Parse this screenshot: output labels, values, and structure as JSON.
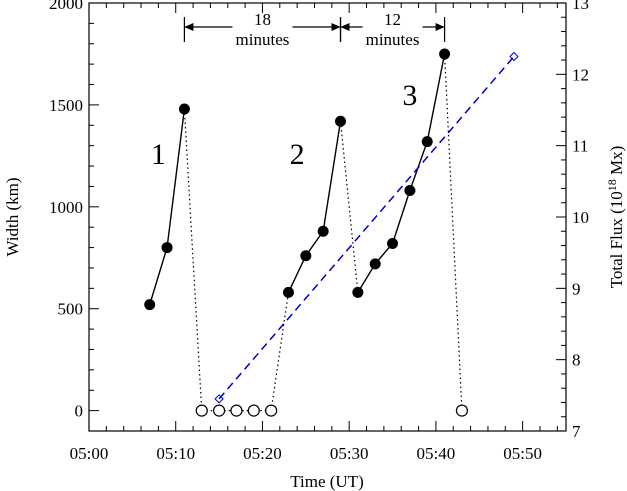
{
  "chart_data": {
    "type": "line",
    "x_unit": "time (UT)",
    "xlabel": "Time (UT)",
    "ylabel_left": "Width (km)",
    "ylabel_right_prefix": "Total Flux (10",
    "ylabel_right_exp": "18",
    "ylabel_right_suffix": " Mx)",
    "xlim": [
      "05:00",
      "05:55"
    ],
    "ylim_left": [
      -100,
      2000
    ],
    "ylim_right": [
      7,
      13
    ],
    "x_ticks": [
      "05:00",
      "05:10",
      "05:20",
      "05:30",
      "05:40",
      "05:50"
    ],
    "y_ticks_left": [
      "0",
      "500",
      "1000",
      "1500",
      "2000"
    ],
    "y_ticks_right": [
      "7",
      "8",
      "9",
      "10",
      "11",
      "12",
      "13"
    ],
    "series": [
      {
        "axis": "left",
        "style": "solid-filled",
        "color": "#000000",
        "x": [
          "05:07",
          "05:09",
          "05:11"
        ],
        "y": [
          520,
          800,
          1480
        ]
      },
      {
        "axis": "left",
        "style": "solid-filled",
        "color": "#000000",
        "x": [
          "05:23",
          "05:25",
          "05:27",
          "05:29"
        ],
        "y": [
          580,
          760,
          880,
          1420
        ]
      },
      {
        "axis": "left",
        "style": "solid-filled",
        "color": "#000000",
        "x": [
          "05:31",
          "05:33",
          "05:35",
          "05:37",
          "05:39",
          "05:41"
        ],
        "y": [
          580,
          720,
          820,
          1080,
          1320,
          1750
        ]
      },
      {
        "axis": "left",
        "style": "dotted-open",
        "color": "#000000",
        "x": [
          "05:13",
          "05:15",
          "05:17",
          "05:19",
          "05:21"
        ],
        "y": [
          0,
          0,
          0,
          0,
          0
        ]
      },
      {
        "axis": "left",
        "style": "dotted-open",
        "color": "#000000",
        "x": [
          "05:43"
        ],
        "y": [
          0
        ]
      },
      {
        "axis": "right",
        "style": "dashed-diamond",
        "color": "#0000cc",
        "x": [
          "05:15",
          "05:49"
        ],
        "y": [
          7.45,
          12.25
        ]
      }
    ],
    "connectors": [
      {
        "from": [
          "05:11",
          1480
        ],
        "to": [
          "05:13",
          0
        ]
      },
      {
        "from": [
          "05:21",
          0
        ],
        "to": [
          "05:23",
          580
        ]
      },
      {
        "from": [
          "05:29",
          1420
        ],
        "to": [
          "05:31",
          580
        ]
      },
      {
        "from": [
          "05:41",
          1750
        ],
        "to": [
          "05:43",
          0
        ]
      }
    ],
    "annotations": [
      {
        "text": "1",
        "x": "05:08",
        "y": 1210
      },
      {
        "text": "2",
        "x": "05:24",
        "y": 1210
      },
      {
        "text": "3",
        "x": "05:37",
        "y": 1500
      }
    ],
    "intervals": [
      {
        "from": "05:11",
        "to": "05:29",
        "value": "18",
        "unit": "minutes"
      },
      {
        "from": "05:29",
        "to": "05:41",
        "value": "12",
        "unit": "minutes"
      }
    ]
  }
}
